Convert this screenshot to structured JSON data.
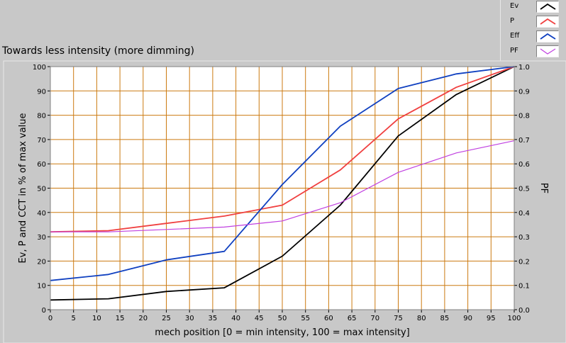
{
  "chart_data": {
    "type": "line",
    "title": "Towards less intensity (more dimming)",
    "xlabel": "mech position [0 = min intensity, 100 = max intensity]",
    "ylabel": "Ev, P and CCT in % of max value",
    "y2label": "PF",
    "xlim": [
      0,
      100
    ],
    "ylim": [
      0,
      100
    ],
    "y2lim": [
      0,
      1.0
    ],
    "x_ticks": [
      0,
      5,
      10,
      15,
      20,
      25,
      30,
      35,
      40,
      45,
      50,
      55,
      60,
      65,
      70,
      75,
      80,
      85,
      90,
      95,
      100
    ],
    "y_ticks": [
      0,
      10,
      20,
      30,
      40,
      50,
      60,
      70,
      80,
      90,
      100
    ],
    "y2_ticks": [
      "0.0",
      "0.1",
      "0.2",
      "0.3",
      "0.4",
      "0.5",
      "0.6",
      "0.7",
      "0.8",
      "0.9",
      "1.0"
    ],
    "grid": true,
    "legend": "top-right",
    "series": [
      {
        "name": "Ev",
        "color": "#000000",
        "axis": "left",
        "x": [
          0,
          12.5,
          25,
          37.5,
          50,
          62.5,
          75,
          87.5,
          100
        ],
        "y": [
          4,
          4.5,
          7.5,
          9,
          22,
          43,
          71.5,
          88.5,
          100
        ]
      },
      {
        "name": "P",
        "color": "#f04040",
        "axis": "left",
        "x": [
          0,
          12.5,
          25,
          37.5,
          50,
          62.5,
          75,
          87.5,
          100
        ],
        "y": [
          32,
          32.5,
          35.5,
          38.5,
          43,
          57.5,
          78.5,
          91.5,
          100
        ]
      },
      {
        "name": "Eff",
        "color": "#1040c0",
        "axis": "left",
        "x": [
          0,
          12.5,
          25,
          37.5,
          50,
          62.5,
          75,
          87.5,
          100
        ],
        "y": [
          12,
          14.5,
          20.5,
          24,
          51.5,
          75.5,
          91,
          97,
          100
        ]
      },
      {
        "name": "PF",
        "color": "#c040e0",
        "axis": "right",
        "x": [
          0,
          12.5,
          25,
          37.5,
          50,
          62.5,
          75,
          87.5,
          100
        ],
        "y": [
          0.32,
          0.32,
          0.33,
          0.34,
          0.365,
          0.44,
          0.565,
          0.645,
          0.695
        ]
      }
    ]
  }
}
